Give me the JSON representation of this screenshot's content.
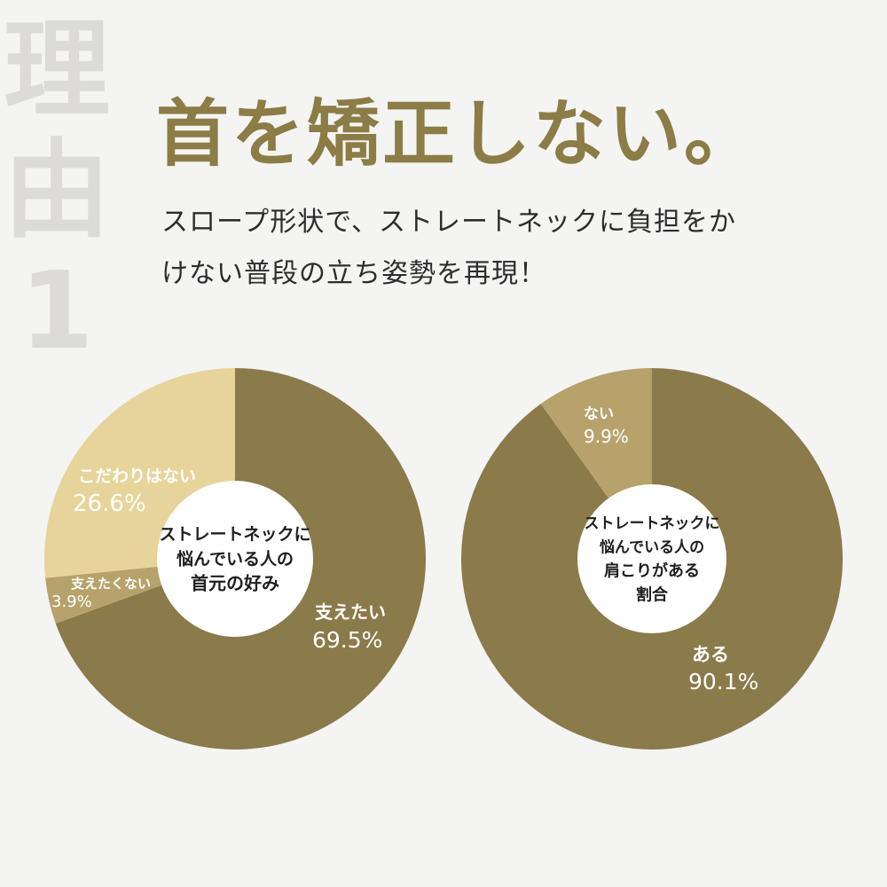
{
  "side_label": [
    "理",
    "由",
    "1"
  ],
  "headline": "首を矯正しない。",
  "subtext": [
    "スロープ形状で、ストレートネックに負担をか",
    "けない普段の立ち姿勢を再現！"
  ],
  "colors": {
    "background": "#f4f4f3",
    "side_label": "#dcdbd8",
    "headline": "#8c7c45",
    "dark_slice": "#8b7a4a",
    "light_slice": "#e7d49a",
    "mid_slice": "#b7a26b"
  },
  "chart_data": [
    {
      "type": "pie",
      "donut": true,
      "center_text": [
        "ストレートネックに",
        "悩んでいる人の",
        "首元の好み"
      ],
      "slices": [
        {
          "name": "支えたい",
          "value": 69.5,
          "label": "69.5%",
          "color": "#8b7a4a"
        },
        {
          "name": "支えたくない",
          "value": 3.9,
          "label": "3.9%",
          "color": "#b7a26b"
        },
        {
          "name": "こだわりはない",
          "value": 26.6,
          "label": "26.6%",
          "color": "#e7d49a"
        }
      ]
    },
    {
      "type": "pie",
      "donut": true,
      "center_text": [
        "ストレートネックに",
        "悩んでいる人の",
        "肩こりがある",
        "割合"
      ],
      "slices": [
        {
          "name": "ある",
          "value": 90.1,
          "label": "90.1%",
          "color": "#8b7a4a"
        },
        {
          "name": "ない",
          "value": 9.9,
          "label": "9.9%",
          "color": "#b7a26b"
        }
      ]
    }
  ]
}
